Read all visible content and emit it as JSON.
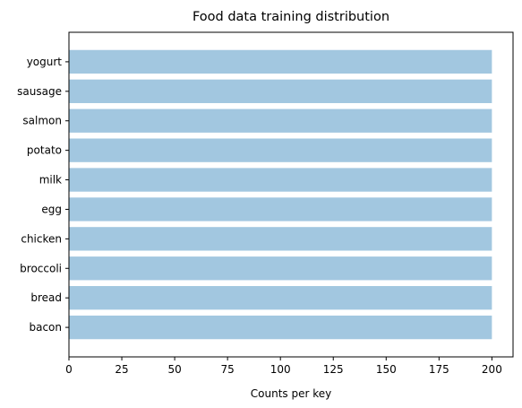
{
  "chart_data": {
    "type": "bar",
    "orientation": "horizontal",
    "title": "Food data training distribution",
    "xlabel": "Counts per key",
    "ylabel": "",
    "categories": [
      "bacon",
      "bread",
      "broccoli",
      "chicken",
      "egg",
      "milk",
      "potato",
      "salmon",
      "sausage",
      "yogurt"
    ],
    "values": [
      200,
      200,
      200,
      200,
      200,
      200,
      200,
      200,
      200,
      200
    ],
    "xlim": [
      0,
      210
    ],
    "xticks": [
      0,
      25,
      50,
      75,
      100,
      125,
      150,
      175,
      200
    ],
    "grid": false,
    "bar_color": "#a2c7e0"
  }
}
